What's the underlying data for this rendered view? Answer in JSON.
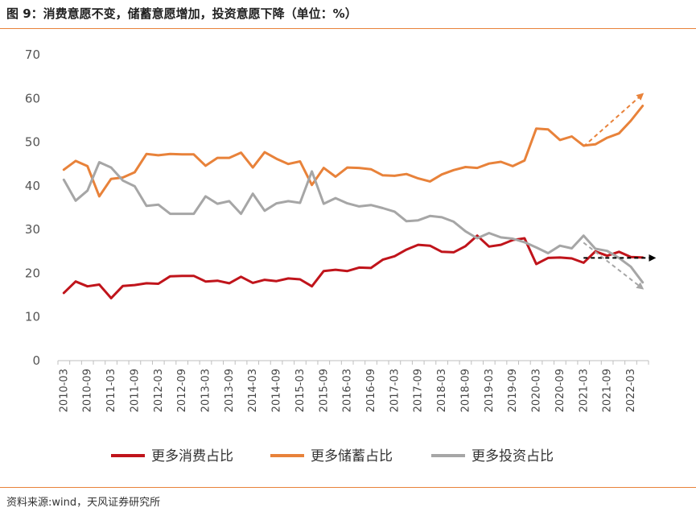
{
  "figure": {
    "title": "图 9：消费意愿不变，储蓄意愿增加，投资意愿下降（单位：%）",
    "source": "资料来源:wind，天风证券研究所"
  },
  "chart_data": {
    "type": "line",
    "title": "",
    "xlabel": "",
    "ylabel": "",
    "ylim": [
      0,
      70
    ],
    "yticks": [
      0,
      10,
      20,
      30,
      40,
      50,
      60,
      70
    ],
    "grid": false,
    "legend": "bottom",
    "x_tick_labels": [
      "2010-03",
      "2010-09",
      "2011-03",
      "2011-09",
      "2012-03",
      "2012-09",
      "2013-03",
      "2013-09",
      "2014-03",
      "2014-09",
      "2015-03",
      "2015-09",
      "2016-03",
      "2016-09",
      "2017-03",
      "2017-09",
      "2018-03",
      "2018-09",
      "2019-03",
      "2019-09",
      "2020-03",
      "2020-09",
      "2021-03",
      "2021-09",
      "2022-03"
    ],
    "x": [
      "2010-03",
      "2010-06",
      "2010-09",
      "2010-12",
      "2011-03",
      "2011-06",
      "2011-09",
      "2011-12",
      "2012-03",
      "2012-06",
      "2012-09",
      "2012-12",
      "2013-03",
      "2013-06",
      "2013-09",
      "2013-12",
      "2014-03",
      "2014-06",
      "2014-09",
      "2014-12",
      "2015-03",
      "2015-06",
      "2015-09",
      "2015-12",
      "2016-03",
      "2016-06",
      "2016-09",
      "2016-12",
      "2017-03",
      "2017-06",
      "2017-09",
      "2017-12",
      "2018-03",
      "2018-06",
      "2018-09",
      "2018-12",
      "2019-03",
      "2019-06",
      "2019-09",
      "2019-12",
      "2020-03",
      "2020-06",
      "2020-09",
      "2020-12",
      "2021-03",
      "2021-06",
      "2021-09",
      "2021-12",
      "2022-03",
      "2022-06"
    ],
    "series": [
      {
        "name": "更多消费占比",
        "color": "#C0141B",
        "values": [
          15.5,
          18.1,
          17.0,
          17.4,
          14.3,
          17.1,
          17.3,
          17.7,
          17.6,
          19.3,
          19.4,
          19.4,
          18.1,
          18.3,
          17.7,
          19.2,
          17.8,
          18.5,
          18.2,
          18.8,
          18.6,
          17.0,
          20.5,
          20.8,
          20.5,
          21.3,
          21.2,
          23.1,
          23.9,
          25.4,
          26.5,
          26.3,
          24.9,
          24.8,
          26.2,
          28.6,
          26.1,
          26.5,
          27.6,
          28.0,
          22.1,
          23.5,
          23.6,
          23.4,
          22.4,
          25.0,
          24.0,
          24.9,
          23.7,
          23.6
        ]
      },
      {
        "name": "更多储蓄占比",
        "color": "#E8823A",
        "values": [
          43.7,
          45.7,
          44.5,
          37.6,
          41.6,
          41.9,
          43.1,
          47.3,
          47.0,
          47.3,
          47.2,
          47.2,
          44.6,
          46.4,
          46.4,
          47.6,
          44.2,
          47.7,
          46.2,
          45.0,
          45.6,
          40.2,
          44.1,
          42.1,
          44.2,
          44.1,
          43.8,
          42.4,
          42.3,
          42.7,
          41.7,
          41.0,
          42.6,
          43.6,
          44.3,
          44.1,
          45.1,
          45.5,
          44.5,
          45.8,
          53.1,
          52.9,
          50.5,
          51.3,
          49.2,
          49.5,
          51.0,
          52.0,
          54.9,
          58.3
        ]
      },
      {
        "name": "更多投资占比",
        "color": "#A6A6A6",
        "values": [
          41.4,
          36.6,
          38.9,
          45.4,
          44.2,
          41.2,
          39.9,
          35.4,
          35.7,
          33.6,
          33.6,
          33.6,
          37.6,
          35.9,
          36.5,
          33.6,
          38.2,
          34.3,
          36.0,
          36.5,
          36.1,
          43.3,
          35.9,
          37.2,
          36.0,
          35.3,
          35.6,
          34.9,
          34.1,
          31.9,
          32.1,
          33.1,
          32.8,
          31.8,
          29.6,
          28.0,
          29.2,
          28.2,
          27.9,
          27.1,
          25.9,
          24.6,
          26.3,
          25.7,
          28.6,
          25.6,
          25.1,
          23.5,
          21.5,
          17.9
        ]
      }
    ],
    "annotations": [
      {
        "type": "trend-arrow",
        "color": "#E8823A",
        "from": [
          "2021-03",
          49.0
        ],
        "to": [
          "2022-06",
          61.0
        ]
      },
      {
        "type": "trend-arrow",
        "color": "#000000",
        "from": [
          "2021-03",
          23.5
        ],
        "to": [
          "2022-09",
          23.5
        ]
      },
      {
        "type": "trend-arrow",
        "color": "#A6A6A6",
        "from": [
          "2021-03",
          27.0
        ],
        "to": [
          "2022-06",
          16.5
        ]
      }
    ]
  }
}
